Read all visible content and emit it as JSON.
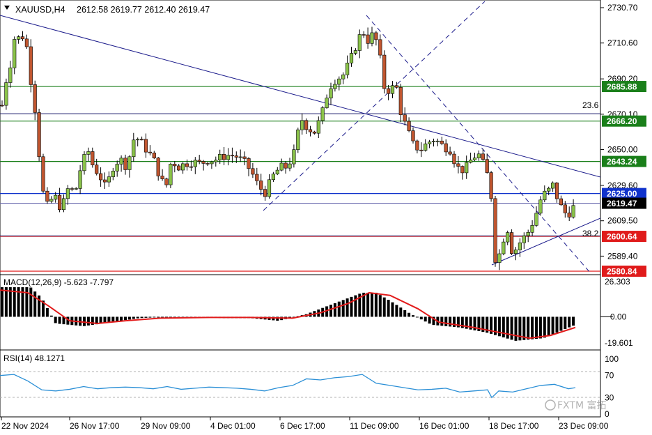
{
  "header": {
    "symbol": "XAUUSD,H4",
    "ohlc": "2612.58 2619.77 2612.40 2619.47"
  },
  "price_axis": {
    "ticks": [
      "2730.70",
      "2710.60",
      "2690.20",
      "2670.10",
      "2650.00",
      "2629.60",
      "2609.50",
      "2589.40"
    ],
    "tags": [
      {
        "label": "2685.88",
        "color": "#1a7f1a"
      },
      {
        "label": "2666.20",
        "color": "#1a7f1a"
      },
      {
        "label": "2643.24",
        "color": "#1a7f1a"
      },
      {
        "label": "2625.00",
        "color": "#1133cc"
      },
      {
        "label": "2619.47",
        "color": "#000000"
      },
      {
        "label": "2600.64",
        "color": "#e01b1b"
      },
      {
        "label": "2580.84",
        "color": "#e01b1b"
      }
    ],
    "fib_labels": [
      "23.6",
      "38.2"
    ]
  },
  "macd": {
    "title": "MACD(12,26,9) -5.623 -7.797",
    "ticks": [
      "26.303",
      "0.00",
      "-19.601"
    ]
  },
  "rsi": {
    "title": "RSI(14) 48.1271",
    "ticks": [
      "100",
      "70",
      "30",
      "0"
    ]
  },
  "time_axis": {
    "labels": [
      "22 Nov 2024",
      "26 Nov 17:00",
      "29 Nov 09:00",
      "4 Dec 01:00",
      "6 Dec 17:00",
      "11 Dec 09:00",
      "16 Dec 01:00",
      "18 Dec 17:00",
      "23 Dec 09:00"
    ]
  },
  "watermark": "FXTM 富拓",
  "chart_data": {
    "type": "candlestick",
    "symbol": "XAUUSD",
    "timeframe": "H4",
    "ylim": [
      2577,
      2735
    ],
    "close_path": [
      [
        0,
        2668
      ],
      [
        10,
        2692
      ],
      [
        18,
        2703
      ],
      [
        22,
        2718
      ],
      [
        28,
        2712
      ],
      [
        36,
        2716
      ],
      [
        44,
        2690
      ],
      [
        52,
        2668
      ],
      [
        60,
        2628
      ],
      [
        68,
        2618
      ],
      [
        78,
        2624
      ],
      [
        88,
        2616
      ],
      [
        98,
        2628
      ],
      [
        108,
        2626
      ],
      [
        116,
        2640
      ],
      [
        126,
        2650
      ],
      [
        134,
        2640
      ],
      [
        142,
        2636
      ],
      [
        152,
        2628
      ],
      [
        162,
        2640
      ],
      [
        172,
        2645
      ],
      [
        182,
        2640
      ],
      [
        192,
        2656
      ],
      [
        200,
        2656
      ],
      [
        210,
        2650
      ],
      [
        220,
        2645
      ],
      [
        230,
        2634
      ],
      [
        238,
        2628
      ],
      [
        246,
        2644
      ],
      [
        256,
        2640
      ],
      [
        266,
        2642
      ],
      [
        278,
        2643
      ],
      [
        288,
        2642
      ],
      [
        298,
        2644
      ],
      [
        308,
        2644
      ],
      [
        320,
        2646
      ],
      [
        330,
        2647
      ],
      [
        340,
        2646
      ],
      [
        350,
        2643
      ],
      [
        360,
        2638
      ],
      [
        370,
        2630
      ],
      [
        380,
        2625
      ],
      [
        392,
        2635
      ],
      [
        402,
        2640
      ],
      [
        412,
        2640
      ],
      [
        422,
        2648
      ],
      [
        432,
        2668
      ],
      [
        442,
        2662
      ],
      [
        452,
        2660
      ],
      [
        462,
        2670
      ],
      [
        472,
        2685
      ],
      [
        482,
        2690
      ],
      [
        492,
        2692
      ],
      [
        502,
        2700
      ],
      [
        512,
        2710
      ],
      [
        520,
        2718
      ],
      [
        528,
        2712
      ],
      [
        536,
        2716
      ],
      [
        544,
        2708
      ],
      [
        550,
        2686
      ],
      [
        560,
        2683
      ],
      [
        568,
        2688
      ],
      [
        576,
        2670
      ],
      [
        584,
        2662
      ],
      [
        594,
        2652
      ],
      [
        604,
        2650
      ],
      [
        614,
        2654
      ],
      [
        624,
        2656
      ],
      [
        636,
        2652
      ],
      [
        646,
        2650
      ],
      [
        656,
        2640
      ],
      [
        666,
        2638
      ],
      [
        676,
        2644
      ],
      [
        686,
        2648
      ],
      [
        696,
        2640
      ],
      [
        704,
        2630
      ],
      [
        712,
        2582
      ],
      [
        720,
        2596
      ],
      [
        728,
        2606
      ],
      [
        736,
        2590
      ],
      [
        744,
        2596
      ],
      [
        752,
        2600
      ],
      [
        760,
        2604
      ],
      [
        770,
        2614
      ],
      [
        778,
        2624
      ],
      [
        786,
        2626
      ],
      [
        794,
        2630
      ],
      [
        802,
        2620
      ],
      [
        810,
        2614
      ],
      [
        818,
        2614
      ],
      [
        826,
        2619
      ]
    ],
    "horizontal_levels": [
      2685.88,
      2666.2,
      2643.24,
      2625.0,
      2619.47,
      2600.64,
      2580.84
    ],
    "fib_levels": [
      {
        "label": "23.6",
        "value": 2670.4
      },
      {
        "label": "38.2",
        "value": 2600.9
      }
    ],
    "macd": {
      "params": [
        12,
        26,
        9
      ],
      "main": -5.623,
      "signal": -7.797,
      "ylim": [
        -19.601,
        26.303
      ],
      "hist_path": [
        [
          0,
          22
        ],
        [
          40,
          24
        ],
        [
          60,
          14
        ],
        [
          80,
          -5
        ],
        [
          120,
          -7
        ],
        [
          160,
          -4
        ],
        [
          200,
          -1
        ],
        [
          240,
          0
        ],
        [
          280,
          0
        ],
        [
          320,
          -1
        ],
        [
          360,
          -1
        ],
        [
          400,
          -3
        ],
        [
          440,
          2
        ],
        [
          480,
          10
        ],
        [
          520,
          18
        ],
        [
          540,
          18
        ],
        [
          560,
          12
        ],
        [
          590,
          2
        ],
        [
          620,
          -6
        ],
        [
          660,
          -8
        ],
        [
          700,
          -12
        ],
        [
          740,
          -18
        ],
        [
          780,
          -16
        ],
        [
          826,
          -6
        ]
      ],
      "signal_path": [
        [
          0,
          20
        ],
        [
          40,
          18
        ],
        [
          70,
          8
        ],
        [
          100,
          -3
        ],
        [
          140,
          -5
        ],
        [
          180,
          -3
        ],
        [
          230,
          -1
        ],
        [
          300,
          -0.5
        ],
        [
          360,
          -0.5
        ],
        [
          420,
          -1
        ],
        [
          460,
          3
        ],
        [
          500,
          10
        ],
        [
          530,
          18
        ],
        [
          560,
          16
        ],
        [
          600,
          6
        ],
        [
          630,
          -4
        ],
        [
          680,
          -8
        ],
        [
          720,
          -12
        ],
        [
          760,
          -16
        ],
        [
          790,
          -14
        ],
        [
          826,
          -8
        ]
      ]
    },
    "rsi": {
      "period": 14,
      "value": 48.1271,
      "levels": [
        70,
        30
      ],
      "ylim": [
        0,
        100
      ],
      "path": [
        [
          0,
          70
        ],
        [
          20,
          72
        ],
        [
          40,
          60
        ],
        [
          60,
          44
        ],
        [
          80,
          42
        ],
        [
          100,
          45
        ],
        [
          120,
          50
        ],
        [
          140,
          46
        ],
        [
          160,
          48
        ],
        [
          180,
          49
        ],
        [
          200,
          48
        ],
        [
          220,
          46
        ],
        [
          240,
          50
        ],
        [
          260,
          45
        ],
        [
          280,
          47
        ],
        [
          300,
          49
        ],
        [
          320,
          48
        ],
        [
          340,
          47
        ],
        [
          360,
          45
        ],
        [
          380,
          42
        ],
        [
          400,
          48
        ],
        [
          420,
          52
        ],
        [
          440,
          64
        ],
        [
          460,
          62
        ],
        [
          480,
          66
        ],
        [
          500,
          68
        ],
        [
          520,
          72
        ],
        [
          540,
          56
        ],
        [
          560,
          52
        ],
        [
          580,
          48
        ],
        [
          600,
          44
        ],
        [
          620,
          45
        ],
        [
          640,
          47
        ],
        [
          660,
          40
        ],
        [
          680,
          42
        ],
        [
          700,
          44
        ],
        [
          706,
          30
        ],
        [
          716,
          42
        ],
        [
          736,
          40
        ],
        [
          756,
          46
        ],
        [
          776,
          52
        ],
        [
          796,
          54
        ],
        [
          816,
          46
        ],
        [
          826,
          48
        ]
      ]
    }
  }
}
